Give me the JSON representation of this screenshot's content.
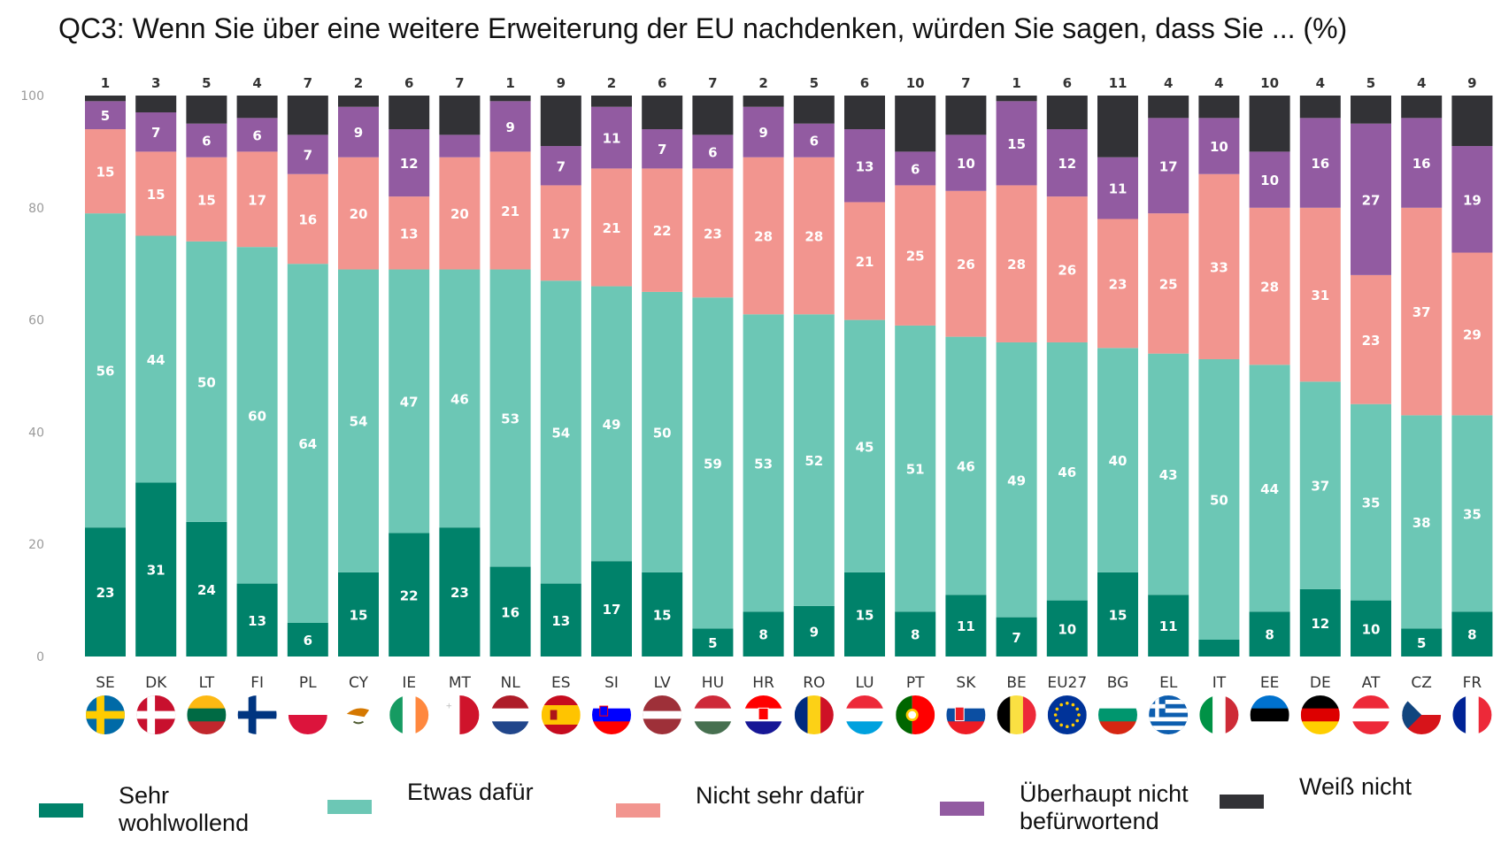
{
  "title": "QC3: Wenn Sie über eine weitere Erweiterung der EU nachdenken, würden Sie sagen, dass Sie ... (%)",
  "chart_data": {
    "type": "bar",
    "stacked": true,
    "title": "QC3: Wenn Sie über eine weitere Erweiterung der EU nachdenken, würden Sie sagen, dass Sie ... (%)",
    "xlabel": "",
    "ylabel": "",
    "ylim": [
      0,
      100
    ],
    "yticks": [
      0,
      20,
      40,
      60,
      80,
      100
    ],
    "categories": [
      "SE",
      "DK",
      "LT",
      "FI",
      "PL",
      "CY",
      "IE",
      "MT",
      "NL",
      "ES",
      "SI",
      "LV",
      "HU",
      "HR",
      "RO",
      "LU",
      "PT",
      "SK",
      "BE",
      "EU27",
      "BG",
      "EL",
      "IT",
      "EE",
      "DE",
      "AT",
      "CZ",
      "FR"
    ],
    "series": [
      {
        "name": "Sehr wohlwollend",
        "color": "#00826a",
        "values": [
          23,
          31,
          24,
          13,
          6,
          15,
          22,
          23,
          16,
          13,
          17,
          15,
          5,
          8,
          9,
          15,
          8,
          11,
          7,
          10,
          15,
          11,
          3,
          8,
          12,
          10,
          5,
          8
        ],
        "labels": [
          "23",
          "31",
          "24",
          "13",
          "6",
          "15",
          "22",
          "23",
          "16",
          "13",
          "17",
          "15",
          "5",
          "8",
          "9",
          "15",
          "8",
          "11",
          "7",
          "10",
          "15",
          "11",
          "",
          "8",
          "12",
          "10",
          "5",
          "8"
        ]
      },
      {
        "name": "Etwas dafür",
        "color": "#6cc7b5",
        "values": [
          56,
          44,
          50,
          60,
          64,
          54,
          47,
          46,
          53,
          54,
          49,
          50,
          59,
          53,
          52,
          45,
          51,
          46,
          49,
          46,
          40,
          43,
          50,
          44,
          37,
          35,
          38,
          35
        ],
        "labels": [
          "56",
          "44",
          "50",
          "60",
          "64",
          "54",
          "47",
          "46",
          "53",
          "54",
          "49",
          "50",
          "59",
          "53",
          "52",
          "45",
          "51",
          "46",
          "49",
          "46",
          "40",
          "43",
          "50",
          "44",
          "37",
          "35",
          "38",
          "35"
        ]
      },
      {
        "name": "Nicht sehr dafür",
        "color": "#f2958f",
        "values": [
          15,
          15,
          15,
          17,
          16,
          20,
          13,
          20,
          21,
          17,
          21,
          22,
          23,
          28,
          28,
          21,
          25,
          26,
          28,
          26,
          23,
          25,
          33,
          28,
          31,
          23,
          37,
          29
        ],
        "labels": [
          "15",
          "15",
          "15",
          "17",
          "16",
          "20",
          "13",
          "20",
          "21",
          "17",
          "21",
          "22",
          "23",
          "28",
          "28",
          "21",
          "25",
          "26",
          "28",
          "26",
          "23",
          "25",
          "33",
          "28",
          "31",
          "23",
          "37",
          "29"
        ]
      },
      {
        "name": "Überhaupt nicht befürwortend",
        "color": "#925ba1",
        "values": [
          5,
          7,
          6,
          6,
          7,
          9,
          12,
          4,
          9,
          7,
          11,
          7,
          6,
          9,
          6,
          13,
          6,
          10,
          15,
          12,
          11,
          17,
          10,
          10,
          16,
          27,
          16,
          19
        ],
        "labels": [
          "5",
          "7",
          "6",
          "6",
          "7",
          "9",
          "12",
          "",
          "9",
          "7",
          "11",
          "7",
          "6",
          "9",
          "6",
          "13",
          "6",
          "10",
          "15",
          "12",
          "11",
          "17",
          "10",
          "10",
          "16",
          "27",
          "16",
          "19"
        ]
      },
      {
        "name": "Weiß nicht",
        "color": "#323236",
        "values": [
          1,
          3,
          5,
          4,
          7,
          2,
          6,
          7,
          1,
          9,
          2,
          6,
          7,
          2,
          5,
          6,
          10,
          7,
          1,
          6,
          11,
          4,
          4,
          10,
          4,
          5,
          4,
          9
        ],
        "labels": [
          "1",
          "3",
          "5",
          "4",
          "7",
          "2",
          "6",
          "7",
          "1",
          "9",
          "2",
          "6",
          "7",
          "2",
          "5",
          "6",
          "10",
          "7",
          "1",
          "6",
          "11",
          "4",
          "4",
          "10",
          "4",
          "5",
          "4",
          "9"
        ]
      }
    ],
    "flags": {
      "SE": {
        "kind": "nordic",
        "bg": "#006aa7",
        "fg": "#fecc00"
      },
      "DK": {
        "kind": "nordic",
        "bg": "#c8102e",
        "fg": "#ffffff"
      },
      "LT": {
        "kind": "h3",
        "c": [
          "#fdb913",
          "#006a44",
          "#c1272d"
        ]
      },
      "FI": {
        "kind": "nordic",
        "bg": "#ffffff",
        "fg": "#003580"
      },
      "PL": {
        "kind": "h2",
        "c": [
          "#ffffff",
          "#dc143c"
        ]
      },
      "CY": {
        "kind": "cy",
        "bg": "#ffffff",
        "fg": "#d57800"
      },
      "IE": {
        "kind": "v3",
        "c": [
          "#169b62",
          "#ffffff",
          "#ff883e"
        ]
      },
      "MT": {
        "kind": "v2",
        "c": [
          "#ffffff",
          "#cf142b"
        ]
      },
      "NL": {
        "kind": "h3",
        "c": [
          "#ae1c28",
          "#ffffff",
          "#21468b"
        ]
      },
      "ES": {
        "kind": "es",
        "c": [
          "#c60b1e",
          "#ffc400"
        ]
      },
      "SI": {
        "kind": "h3",
        "c": [
          "#ffffff",
          "#0000ff",
          "#ff0000"
        ]
      },
      "LV": {
        "kind": "lv",
        "c": [
          "#9e3039",
          "#ffffff"
        ]
      },
      "HU": {
        "kind": "h3",
        "c": [
          "#ce2939",
          "#ffffff",
          "#477050"
        ]
      },
      "HR": {
        "kind": "h3",
        "c": [
          "#ff0000",
          "#ffffff",
          "#171796"
        ]
      },
      "RO": {
        "kind": "v3",
        "c": [
          "#002b7f",
          "#fcd116",
          "#ce1126"
        ]
      },
      "LU": {
        "kind": "h3",
        "c": [
          "#ed2939",
          "#ffffff",
          "#00a1de"
        ]
      },
      "PT": {
        "kind": "pt",
        "c": [
          "#006600",
          "#ff0000",
          "#ffcc00"
        ]
      },
      "SK": {
        "kind": "h3",
        "c": [
          "#ffffff",
          "#0b4ea2",
          "#ee1c25"
        ]
      },
      "BE": {
        "kind": "v3",
        "c": [
          "#000000",
          "#fae042",
          "#ed2939"
        ]
      },
      "EU27": {
        "kind": "eu",
        "bg": "#003399",
        "fg": "#ffcc00"
      },
      "BG": {
        "kind": "h3",
        "c": [
          "#ffffff",
          "#00966e",
          "#d62612"
        ]
      },
      "EL": {
        "kind": "gr",
        "bg": "#0d5eaf",
        "fg": "#ffffff"
      },
      "IT": {
        "kind": "v3",
        "c": [
          "#009246",
          "#ffffff",
          "#ce2b37"
        ]
      },
      "EE": {
        "kind": "h3",
        "c": [
          "#0072ce",
          "#000000",
          "#ffffff"
        ]
      },
      "DE": {
        "kind": "h3",
        "c": [
          "#000000",
          "#dd0000",
          "#ffce00"
        ]
      },
      "AT": {
        "kind": "h3",
        "c": [
          "#ed2939",
          "#ffffff",
          "#ed2939"
        ]
      },
      "CZ": {
        "kind": "cz",
        "c": [
          "#ffffff",
          "#d7141a",
          "#11457e"
        ]
      },
      "FR": {
        "kind": "v3",
        "c": [
          "#002395",
          "#ffffff",
          "#ed2939"
        ]
      }
    }
  },
  "legend": [
    {
      "label_line1": "Sehr",
      "label_line2": "wohlwollend",
      "color": "#00826a"
    },
    {
      "label_line1": "Etwas dafür",
      "label_line2": "",
      "color": "#6cc7b5"
    },
    {
      "label_line1": "Nicht sehr dafür",
      "label_line2": "",
      "color": "#f2958f"
    },
    {
      "label_line1": "Überhaupt nicht",
      "label_line2": "befürwortend",
      "color": "#925ba1"
    },
    {
      "label_line1": "Weiß nicht",
      "label_line2": "",
      "color": "#323236"
    }
  ]
}
